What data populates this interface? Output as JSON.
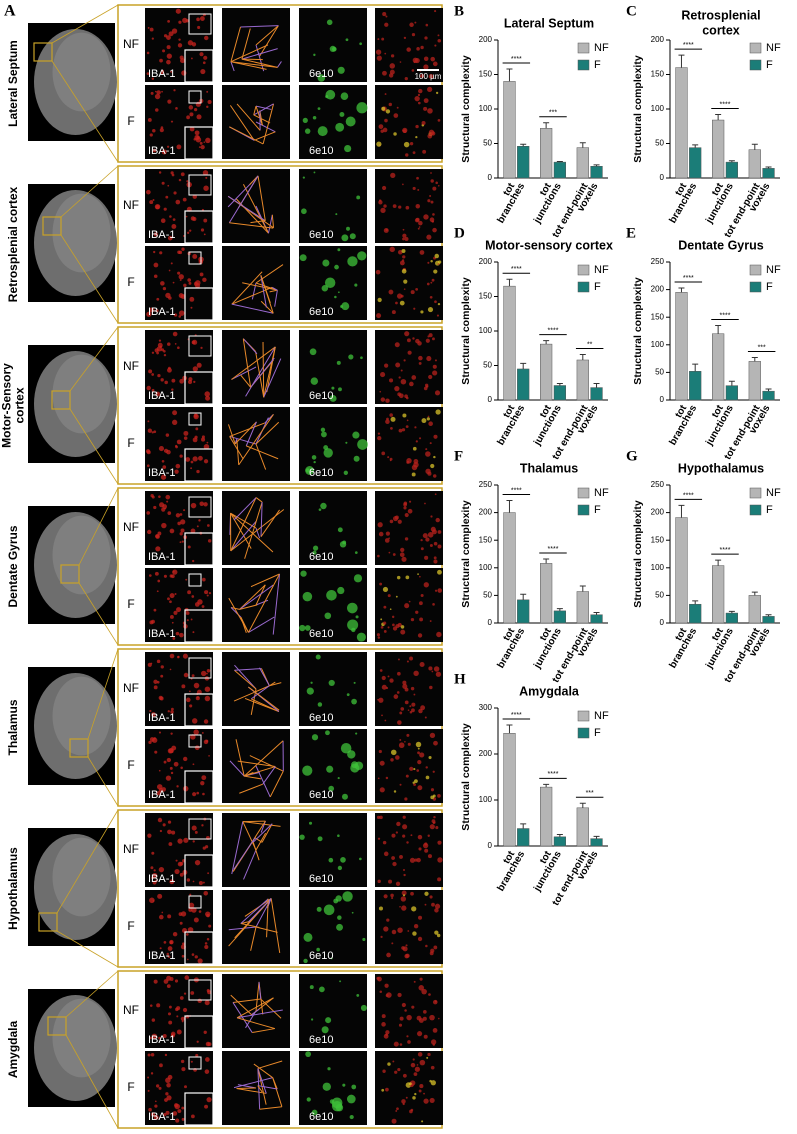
{
  "panel_a": {
    "letter": "A",
    "conditions": [
      "NF",
      "F"
    ],
    "stain_labels": [
      "IBA-1",
      "6e10"
    ],
    "scale_bar": "100 µm",
    "rows": [
      {
        "region": [
          "Lateral Septum"
        ]
      },
      {
        "region": [
          "Retrosplenial cortex"
        ]
      },
      {
        "region": [
          "Motor-Sensory",
          "cortex"
        ]
      },
      {
        "region": [
          "Dentate Gyrus"
        ]
      },
      {
        "region": [
          "Thalamus"
        ]
      },
      {
        "region": [
          "Hypothalamus"
        ]
      },
      {
        "region": [
          "Amygdala"
        ]
      }
    ]
  },
  "chart_data": [
    {
      "type": "bar",
      "letter": "B",
      "title": [
        "Lateral Septum"
      ],
      "y_label": "Structural complexity",
      "categories": [
        [
          "tot",
          "branches"
        ],
        [
          "tot",
          "junctions"
        ],
        [
          "tot end-point",
          "voxels"
        ]
      ],
      "series": [
        {
          "name": "NF",
          "color": "#b5b5b5",
          "values": [
            140,
            72,
            44
          ],
          "errors": [
            18,
            8,
            7
          ]
        },
        {
          "name": "F",
          "color": "#1b7d78",
          "values": [
            46,
            23,
            17
          ],
          "errors": [
            3,
            1,
            2
          ]
        }
      ],
      "ylim": [
        0,
        200
      ],
      "yticks": [
        0,
        50,
        100,
        150,
        200
      ],
      "legend": "upper right",
      "significance": [
        {
          "group": 0,
          "label": "****"
        },
        {
          "group": 1,
          "label": "***"
        }
      ]
    },
    {
      "type": "bar",
      "letter": "C",
      "title": [
        "Retrosplenial",
        "cortex"
      ],
      "y_label": "Structural complexity",
      "categories": [
        [
          "tot",
          "branches"
        ],
        [
          "tot",
          "junctions"
        ],
        [
          "tot end-point",
          "voxels"
        ]
      ],
      "series": [
        {
          "name": "NF",
          "color": "#b5b5b5",
          "values": [
            160,
            84,
            41
          ],
          "errors": [
            18,
            8,
            8
          ]
        },
        {
          "name": "F",
          "color": "#1b7d78",
          "values": [
            44,
            23,
            14
          ],
          "errors": [
            4,
            2,
            2
          ]
        }
      ],
      "ylim": [
        0,
        200
      ],
      "yticks": [
        0,
        50,
        100,
        150,
        200
      ],
      "legend": "upper right",
      "significance": [
        {
          "group": 0,
          "label": "****"
        },
        {
          "group": 1,
          "label": "****"
        }
      ]
    },
    {
      "type": "bar",
      "letter": "D",
      "title": [
        "Motor-sensory cortex"
      ],
      "y_label": "Structural complexity",
      "categories": [
        [
          "tot",
          "branches"
        ],
        [
          "tot",
          "junctions"
        ],
        [
          "tot end-point",
          "voxels"
        ]
      ],
      "series": [
        {
          "name": "NF",
          "color": "#b5b5b5",
          "values": [
            165,
            81,
            58
          ],
          "errors": [
            10,
            5,
            8
          ]
        },
        {
          "name": "F",
          "color": "#1b7d78",
          "values": [
            45,
            21,
            18
          ],
          "errors": [
            8,
            3,
            6
          ]
        }
      ],
      "ylim": [
        0,
        200
      ],
      "yticks": [
        0,
        50,
        100,
        150,
        200
      ],
      "legend": "upper right",
      "significance": [
        {
          "group": 0,
          "label": "****"
        },
        {
          "group": 1,
          "label": "****"
        },
        {
          "group": 2,
          "label": "**"
        }
      ]
    },
    {
      "type": "bar",
      "letter": "E",
      "title": [
        "Dentate Gyrus"
      ],
      "y_label": "Structural complexity",
      "categories": [
        [
          "tot",
          "branches"
        ],
        [
          "tot",
          "junctions"
        ],
        [
          "tot end-point",
          "voxels"
        ]
      ],
      "series": [
        {
          "name": "NF",
          "color": "#b5b5b5",
          "values": [
            195,
            120,
            70
          ],
          "errors": [
            8,
            15,
            7
          ]
        },
        {
          "name": "F",
          "color": "#1b7d78",
          "values": [
            52,
            26,
            16
          ],
          "errors": [
            13,
            8,
            4
          ]
        }
      ],
      "ylim": [
        0,
        250
      ],
      "yticks": [
        0,
        50,
        100,
        150,
        200,
        250
      ],
      "legend": "upper right",
      "significance": [
        {
          "group": 0,
          "label": "****"
        },
        {
          "group": 1,
          "label": "****"
        },
        {
          "group": 2,
          "label": "***"
        }
      ]
    },
    {
      "type": "bar",
      "letter": "F",
      "title": [
        "Thalamus"
      ],
      "y_label": "Structural complexity",
      "categories": [
        [
          "tot",
          "branches"
        ],
        [
          "tot",
          "junctions"
        ],
        [
          "tot end-point",
          "voxels"
        ]
      ],
      "series": [
        {
          "name": "NF",
          "color": "#b5b5b5",
          "values": [
            200,
            108,
            57
          ],
          "errors": [
            22,
            8,
            10
          ]
        },
        {
          "name": "F",
          "color": "#1b7d78",
          "values": [
            42,
            22,
            15
          ],
          "errors": [
            10,
            4,
            4
          ]
        }
      ],
      "ylim": [
        0,
        250
      ],
      "yticks": [
        0,
        50,
        100,
        150,
        200,
        250
      ],
      "legend": "upper right",
      "significance": [
        {
          "group": 0,
          "label": "****"
        },
        {
          "group": 1,
          "label": "****"
        }
      ]
    },
    {
      "type": "bar",
      "letter": "G",
      "title": [
        "Hypothalamus"
      ],
      "y_label": "Structural complexity",
      "categories": [
        [
          "tot",
          "branches"
        ],
        [
          "tot",
          "junctions"
        ],
        [
          "tot end-point",
          "voxels"
        ]
      ],
      "series": [
        {
          "name": "NF",
          "color": "#b5b5b5",
          "values": [
            191,
            104,
            50
          ],
          "errors": [
            22,
            10,
            6
          ]
        },
        {
          "name": "F",
          "color": "#1b7d78",
          "values": [
            34,
            18,
            12
          ],
          "errors": [
            6,
            3,
            3
          ]
        }
      ],
      "ylim": [
        0,
        250
      ],
      "yticks": [
        0,
        50,
        100,
        150,
        200,
        250
      ],
      "legend": "upper right",
      "significance": [
        {
          "group": 0,
          "label": "****"
        },
        {
          "group": 1,
          "label": "****"
        }
      ]
    },
    {
      "type": "bar",
      "letter": "H",
      "title": [
        "Amygdala"
      ],
      "y_label": "Structural complexity",
      "categories": [
        [
          "tot",
          "branches"
        ],
        [
          "tot",
          "junctions"
        ],
        [
          "tot end-point",
          "voxels"
        ]
      ],
      "series": [
        {
          "name": "NF",
          "color": "#b5b5b5",
          "values": [
            245,
            128,
            83
          ],
          "errors": [
            18,
            6,
            10
          ]
        },
        {
          "name": "F",
          "color": "#1b7d78",
          "values": [
            38,
            20,
            16
          ],
          "errors": [
            10,
            5,
            5
          ]
        }
      ],
      "ylim": [
        0,
        300
      ],
      "yticks": [
        0,
        100,
        200,
        300
      ],
      "legend": "upper right",
      "significance": [
        {
          "group": 0,
          "label": "****"
        },
        {
          "group": 1,
          "label": "****"
        },
        {
          "group": 2,
          "label": "***"
        }
      ]
    }
  ]
}
